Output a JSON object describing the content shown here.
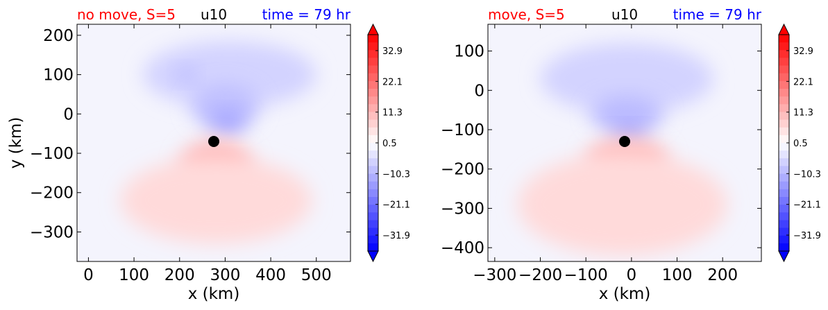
{
  "chart_data": [
    {
      "type": "heatmap",
      "title_left": "no move, S=5",
      "title_center": "u10",
      "title_right": "time = 79 hr",
      "title_colors": {
        "left": "#ff0000",
        "center": "#000000",
        "right": "#0000ff"
      },
      "xlabel": "x (km)",
      "ylabel": "y (km)",
      "xlim": [
        -25,
        575
      ],
      "ylim": [
        -375,
        228
      ],
      "xticks": [
        0,
        100,
        200,
        300,
        400,
        500
      ],
      "yticks": [
        -300,
        -200,
        -100,
        0,
        100,
        200
      ],
      "xtick_labels": [
        "0",
        "100",
        "200",
        "300",
        "400",
        "500"
      ],
      "ytick_labels": [
        "−300",
        "−200",
        "−100",
        "0",
        "100",
        "200"
      ],
      "center_marker": {
        "x": 275,
        "y": -70
      },
      "colorbar": {
        "vmin": -37.5,
        "vmax": 38.5,
        "tick_values": [
          32.9,
          22.1,
          11.3,
          0.5,
          -10.3,
          -21.1,
          -31.9
        ],
        "tick_labels": [
          "32.9",
          "22.1",
          "11.3",
          "0.5",
          "−10.3",
          "−21.1",
          "−31.9"
        ],
        "extend": "both",
        "cmap": "bwr"
      },
      "blobs": [
        {
          "x": 310,
          "y": 100,
          "rx": 190,
          "ry": 85,
          "value": -6
        },
        {
          "x": 300,
          "y": 20,
          "rx": 75,
          "ry": 55,
          "value": -9
        },
        {
          "x": 305,
          "y": -20,
          "rx": 40,
          "ry": 28,
          "value": -13
        },
        {
          "x": 215,
          "y": 100,
          "rx": 22,
          "ry": 20,
          "value": -10
        },
        {
          "x": 280,
          "y": -130,
          "rx": 80,
          "ry": 65,
          "value": 11
        },
        {
          "x": 280,
          "y": -220,
          "rx": 210,
          "ry": 110,
          "value": 6
        }
      ]
    },
    {
      "type": "heatmap",
      "title_left": "move, S=5",
      "title_center": "u10",
      "title_right": "time = 79 hr",
      "title_colors": {
        "left": "#ff0000",
        "center": "#000000",
        "right": "#0000ff"
      },
      "xlabel": "x (km)",
      "ylabel": "",
      "xlim": [
        -315,
        285
      ],
      "ylim": [
        -435,
        168
      ],
      "xticks": [
        -300,
        -200,
        -100,
        0,
        100,
        200
      ],
      "yticks": [
        -400,
        -300,
        -200,
        -100,
        0,
        100
      ],
      "xtick_labels": [
        "−300",
        "−200",
        "−100",
        "0",
        "100",
        "200"
      ],
      "ytick_labels": [
        "−400",
        "−300",
        "−200",
        "−100",
        "0",
        "100"
      ],
      "center_marker": {
        "x": -15,
        "y": -130
      },
      "colorbar": {
        "vmin": -37.5,
        "vmax": 38.5,
        "tick_values": [
          32.9,
          22.1,
          11.3,
          0.5,
          -10.3,
          -21.1,
          -31.9
        ],
        "tick_labels": [
          "32.9",
          "22.1",
          "11.3",
          "0.5",
          "−10.3",
          "−21.1",
          "−31.9"
        ],
        "extend": "both",
        "cmap": "bwr"
      },
      "blobs": [
        {
          "x": -10,
          "y": 30,
          "rx": 190,
          "ry": 90,
          "value": -6
        },
        {
          "x": -10,
          "y": -60,
          "rx": 80,
          "ry": 45,
          "value": -10
        },
        {
          "x": -5,
          "y": -105,
          "rx": 40,
          "ry": 20,
          "value": -14
        },
        {
          "x": -10,
          "y": -175,
          "rx": 90,
          "ry": 55,
          "value": 11
        },
        {
          "x": -20,
          "y": -290,
          "rx": 230,
          "ry": 130,
          "value": 6
        }
      ]
    }
  ]
}
